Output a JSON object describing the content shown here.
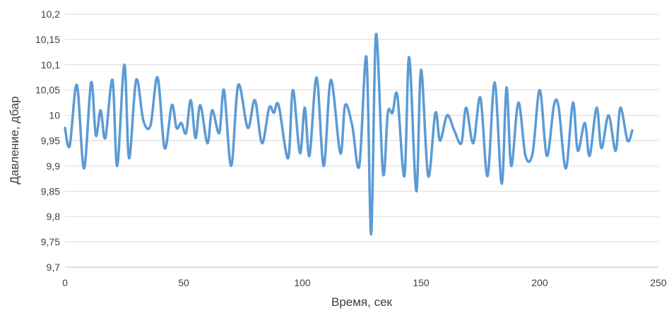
{
  "chart_data": {
    "type": "line",
    "title": "",
    "xlabel": "Время, сек",
    "ylabel": "Давление, дбар",
    "xlim": [
      0,
      250
    ],
    "ylim": [
      9.7,
      10.2
    ],
    "x_ticks": [
      0,
      50,
      100,
      150,
      200,
      250
    ],
    "y_ticks": [
      9.7,
      9.75,
      9.8,
      9.85,
      9.9,
      9.95,
      10,
      10.05,
      10.1,
      10.15,
      10.2
    ],
    "x_tick_labels": [
      "0",
      "50",
      "100",
      "150",
      "200",
      "250"
    ],
    "y_tick_labels": [
      "9,7",
      "9,75",
      "9,8",
      "9,85",
      "9,9",
      "9,95",
      "10",
      "10,05",
      "10,1",
      "10,15",
      "10,2"
    ],
    "grid": "horizontal",
    "legend": "none",
    "line_color": "#5b9bd5",
    "series": [
      {
        "x": [
          0,
          2,
          5,
          8,
          11,
          13,
          15,
          17,
          20,
          22,
          25,
          27,
          30,
          33,
          36,
          39,
          42,
          45,
          47,
          49,
          51,
          53,
          55,
          57,
          60,
          62,
          65,
          67,
          70,
          73,
          77,
          80,
          83,
          86,
          88,
          90,
          94,
          96,
          99,
          101,
          103,
          106,
          109,
          112,
          116,
          118,
          121,
          124,
          127,
          129,
          131,
          134,
          136,
          138,
          140,
          143,
          145,
          148,
          150,
          153,
          156,
          158,
          161,
          164,
          167,
          169,
          172,
          175,
          178,
          181,
          184,
          186,
          188,
          191,
          194,
          197,
          200,
          203,
          206,
          208,
          211,
          214,
          216,
          219,
          221,
          224,
          226,
          229,
          232,
          234,
          237,
          239
        ],
        "y": [
          9.975,
          9.94,
          10.06,
          9.895,
          10.065,
          9.96,
          10.01,
          9.955,
          10.07,
          9.9,
          10.1,
          9.915,
          10.07,
          9.99,
          9.98,
          10.075,
          9.935,
          10.02,
          9.975,
          9.985,
          9.965,
          10.03,
          9.955,
          10.02,
          9.945,
          10.01,
          9.965,
          10.05,
          9.9,
          10.06,
          9.975,
          10.03,
          9.945,
          10.015,
          10.005,
          10.02,
          9.915,
          10.05,
          9.925,
          10.015,
          9.92,
          10.075,
          9.9,
          10.07,
          9.925,
          10.02,
          9.98,
          9.9,
          10.115,
          9.765,
          10.16,
          9.885,
          10.005,
          10.005,
          10.04,
          9.88,
          10.115,
          9.85,
          10.09,
          9.88,
          10.005,
          9.95,
          10,
          9.97,
          9.945,
          10.015,
          9.945,
          10.035,
          9.88,
          10.065,
          9.865,
          10.055,
          9.9,
          10.025,
          9.92,
          9.925,
          10.05,
          9.92,
          10.02,
          10.015,
          9.895,
          10.025,
          9.93,
          9.985,
          9.92,
          10.015,
          9.935,
          10,
          9.93,
          10.015,
          9.95,
          9.97
        ]
      }
    ]
  }
}
